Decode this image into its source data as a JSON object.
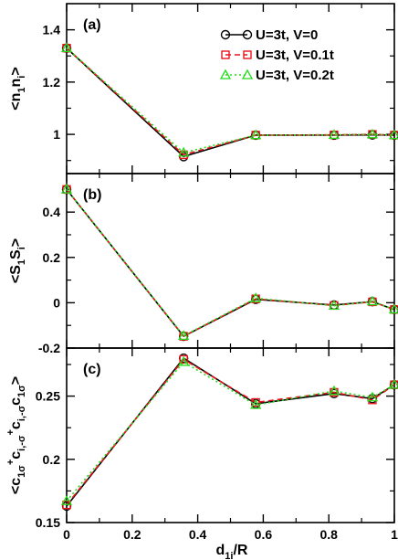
{
  "chart_data": [
    {
      "type": "line",
      "panel_label": "(a)",
      "ylabel_parts": [
        "<n",
        "1",
        "n",
        "i",
        ">"
      ],
      "x": [
        0,
        0.357,
        0.577,
        0.816,
        0.933,
        1.0
      ],
      "ylim": [
        0.85,
        1.5
      ],
      "yticks": [
        1,
        1.2,
        1.4
      ],
      "ytick_labels": [
        "1",
        "1.2",
        "1.4"
      ],
      "series": [
        {
          "name": "U=3t, V=0",
          "color": "#000000",
          "marker": "circle",
          "values": [
            1.33,
            0.915,
            0.997,
            0.997,
            0.998,
            0.997
          ]
        },
        {
          "name": "U=3t, V=0.1t",
          "color": "#e8141c",
          "marker": "square",
          "values": [
            1.33,
            0.922,
            0.997,
            0.998,
            1.0,
            0.997
          ]
        },
        {
          "name": "U=3t, V=0.2t",
          "color": "#22dd1a",
          "marker": "triangle",
          "values": [
            1.33,
            0.93,
            0.997,
            0.998,
            1.0,
            0.997
          ]
        }
      ],
      "legend": {
        "position": "top-right",
        "entries": [
          "U=3t, V=0",
          "U=3t, V=0.1t",
          "U=3t, V=0.2t"
        ]
      }
    },
    {
      "type": "line",
      "panel_label": "(b)",
      "ylabel_parts": [
        "<S",
        "1",
        "S",
        "i",
        ">"
      ],
      "x": [
        0,
        0.357,
        0.577,
        0.816,
        0.933,
        1.0
      ],
      "ylim": [
        -0.2,
        0.57
      ],
      "yticks": [
        -0.2,
        0,
        0.2,
        0.4
      ],
      "ytick_labels": [
        "-0.2",
        "0",
        "0.2",
        "0.4"
      ],
      "series": [
        {
          "name": "U=3t, V=0",
          "color": "#000000",
          "marker": "circle",
          "values": [
            0.5,
            -0.148,
            0.015,
            -0.01,
            0.005,
            -0.03
          ]
        },
        {
          "name": "U=3t, V=0.1t",
          "color": "#e8141c",
          "marker": "square",
          "values": [
            0.5,
            -0.148,
            0.017,
            -0.012,
            0.004,
            -0.03
          ]
        },
        {
          "name": "U=3t, V=0.2t",
          "color": "#22dd1a",
          "marker": "triangle",
          "values": [
            0.5,
            -0.146,
            0.02,
            -0.013,
            0.006,
            -0.03
          ]
        }
      ]
    },
    {
      "type": "line",
      "panel_label": "(c)",
      "ylabel_parts": [
        "<c",
        "1σ",
        "+",
        "c",
        "i,-σ",
        "+",
        "c",
        "i,-σ",
        "c",
        "1σ",
        ">"
      ],
      "x": [
        0,
        0.357,
        0.577,
        0.816,
        0.933,
        1.0
      ],
      "xlim": [
        0,
        1
      ],
      "xticks": [
        0,
        0.2,
        0.4,
        0.6,
        0.8,
        1
      ],
      "xtick_labels": [
        "0",
        "0.2",
        "0.4",
        "0.6",
        "0.8",
        "1"
      ],
      "xlabel_parts": [
        "d",
        "1i",
        "/R"
      ],
      "ylim": [
        0.15,
        0.288
      ],
      "yticks": [
        0.15,
        0.2,
        0.25
      ],
      "ytick_labels": [
        "0.15",
        "0.2",
        "0.25"
      ],
      "series": [
        {
          "name": "U=3t, V=0",
          "color": "#000000",
          "marker": "circle",
          "values": [
            0.163,
            0.28,
            0.244,
            0.252,
            0.248,
            0.259
          ]
        },
        {
          "name": "U=3t, V=0.1t",
          "color": "#e8141c",
          "marker": "square",
          "values": [
            0.164,
            0.279,
            0.245,
            0.253,
            0.247,
            0.259
          ]
        },
        {
          "name": "U=3t, V=0.2t",
          "color": "#22dd1a",
          "marker": "triangle",
          "values": [
            0.167,
            0.277,
            0.243,
            0.254,
            0.249,
            0.259
          ]
        }
      ]
    }
  ]
}
